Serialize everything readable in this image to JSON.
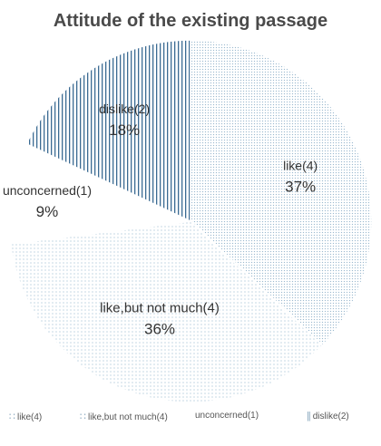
{
  "chart_data": {
    "type": "pie",
    "title": "Attitude of the existing passage",
    "slices": [
      {
        "label": "like(4)",
        "percent": 37,
        "percent_text": "37%",
        "pattern": "fine-dots",
        "color": "#b8cfe0"
      },
      {
        "label": "like,but not much(4)",
        "percent": 36,
        "percent_text": "36%",
        "pattern": "sparse-dots",
        "color": "#b8cfe0"
      },
      {
        "label": "unconcerned(1)",
        "percent": 9,
        "percent_text": "9%",
        "pattern": "none",
        "color": "#ffffff"
      },
      {
        "label": "dislike(2)",
        "percent": 18,
        "percent_text": "18%",
        "pattern": "vertical-stripes",
        "color": "#2f5f8a"
      }
    ],
    "legend": {
      "position": "bottom",
      "items": [
        {
          "marker": "∷",
          "label": "like(4)"
        },
        {
          "marker": "∷",
          "label": "like,but not much(4)"
        },
        {
          "marker": "",
          "label": "unconcerned(1)"
        },
        {
          "marker": "||",
          "label": "dislike(2)"
        }
      ]
    }
  }
}
